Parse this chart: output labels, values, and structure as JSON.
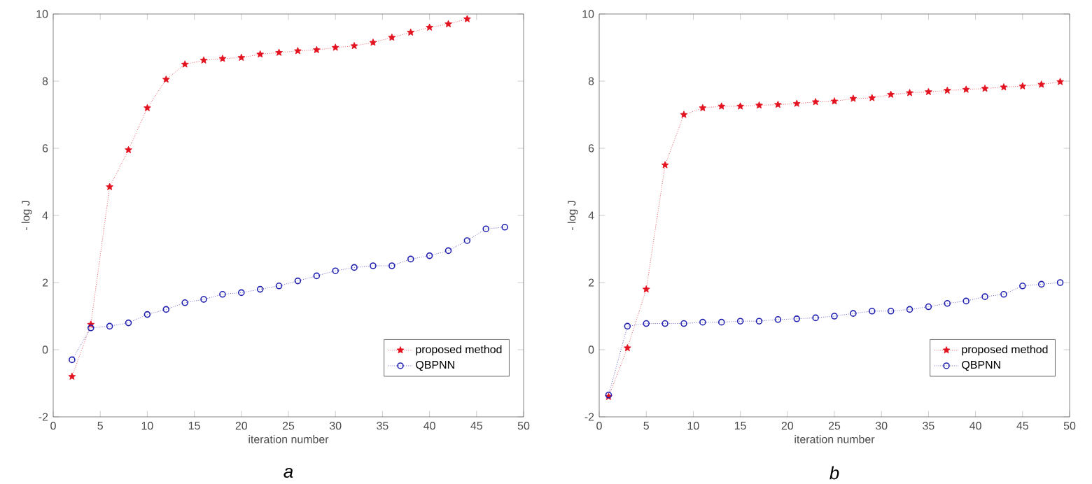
{
  "chart_data": [
    {
      "type": "line",
      "xlabel": "iteration number",
      "ylabel": "- log J",
      "xlim": [
        0,
        50
      ],
      "ylim": [
        -2,
        10
      ],
      "xticks": [
        0,
        5,
        10,
        15,
        20,
        25,
        30,
        35,
        40,
        45,
        50
      ],
      "yticks": [
        -2,
        0,
        2,
        4,
        6,
        8,
        10
      ],
      "legend": "bottom right",
      "line_style": "dotted",
      "annotations": [
        "a"
      ],
      "series": [
        {
          "name": "proposed method",
          "color": "#e3121f",
          "marker": "star",
          "x": [
            2,
            4,
            6,
            8,
            10,
            12,
            14,
            16,
            18,
            20,
            22,
            24,
            26,
            28,
            30,
            32,
            34,
            36,
            38,
            40,
            42,
            44
          ],
          "values": [
            -0.8,
            0.75,
            4.85,
            5.95,
            7.2,
            8.05,
            8.5,
            8.62,
            8.67,
            8.7,
            8.8,
            8.85,
            8.9,
            8.93,
            9.0,
            9.05,
            9.15,
            9.3,
            9.45,
            9.6,
            9.7,
            9.85
          ]
        },
        {
          "name": "QBPNN",
          "color": "#2020b0",
          "marker": "circle",
          "x": [
            2,
            4,
            6,
            8,
            10,
            12,
            14,
            16,
            18,
            20,
            22,
            24,
            26,
            28,
            30,
            32,
            34,
            36,
            38,
            40,
            42,
            44,
            46,
            48
          ],
          "values": [
            -0.3,
            0.65,
            0.7,
            0.8,
            1.05,
            1.2,
            1.4,
            1.5,
            1.65,
            1.7,
            1.8,
            1.9,
            2.05,
            2.2,
            2.35,
            2.45,
            2.5,
            2.5,
            2.7,
            2.8,
            2.95,
            3.25,
            3.6,
            3.65
          ]
        }
      ]
    },
    {
      "type": "line",
      "xlabel": "iteration number",
      "ylabel": "- log J",
      "xlim": [
        0,
        50
      ],
      "ylim": [
        -2,
        10
      ],
      "xticks": [
        0,
        5,
        10,
        15,
        20,
        25,
        30,
        35,
        40,
        45,
        50
      ],
      "yticks": [
        -2,
        0,
        2,
        4,
        6,
        8,
        10
      ],
      "legend": "bottom right",
      "line_style": "dotted",
      "annotations": [
        "b"
      ],
      "series": [
        {
          "name": "proposed method",
          "color": "#e3121f",
          "marker": "star",
          "x": [
            1,
            3,
            5,
            7,
            9,
            11,
            13,
            15,
            17,
            19,
            21,
            23,
            25,
            27,
            29,
            31,
            33,
            35,
            37,
            39,
            41,
            43,
            45,
            47,
            49
          ],
          "values": [
            -1.4,
            0.05,
            1.8,
            5.5,
            7.0,
            7.2,
            7.25,
            7.25,
            7.28,
            7.3,
            7.33,
            7.38,
            7.4,
            7.48,
            7.5,
            7.6,
            7.65,
            7.68,
            7.72,
            7.75,
            7.78,
            7.82,
            7.85,
            7.9,
            7.98
          ]
        },
        {
          "name": "QBPNN",
          "color": "#2020b0",
          "marker": "circle",
          "x": [
            1,
            3,
            5,
            7,
            9,
            11,
            13,
            15,
            17,
            19,
            21,
            23,
            25,
            27,
            29,
            31,
            33,
            35,
            37,
            39,
            41,
            43,
            45,
            47,
            49
          ],
          "values": [
            -1.35,
            0.7,
            0.78,
            0.78,
            0.78,
            0.82,
            0.82,
            0.85,
            0.85,
            0.9,
            0.92,
            0.95,
            1.0,
            1.08,
            1.15,
            1.15,
            1.2,
            1.28,
            1.38,
            1.45,
            1.58,
            1.65,
            1.9,
            1.95,
            2.0
          ]
        }
      ]
    }
  ]
}
